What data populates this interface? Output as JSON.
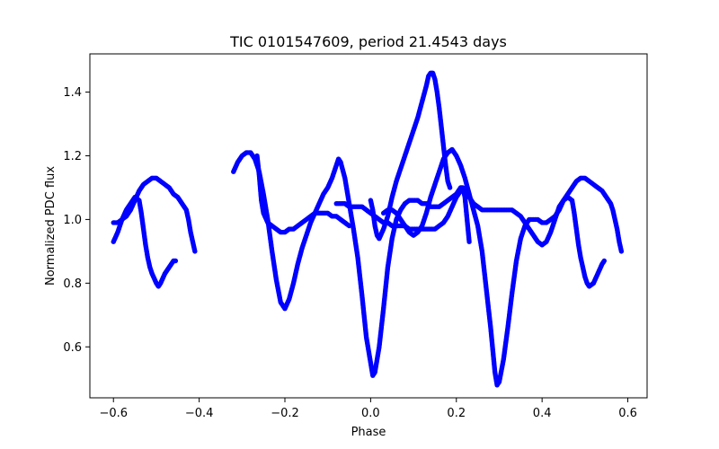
{
  "chart_data": {
    "type": "scatter",
    "title": "TIC 0101547609, period 21.4543 days",
    "xlabel": "Phase",
    "ylabel": "Normalized PDC flux",
    "xlim": [
      -0.655,
      0.645
    ],
    "ylim": [
      0.44,
      1.52
    ],
    "xticks": [
      -0.6,
      -0.4,
      -0.2,
      0.0,
      0.2,
      0.4,
      0.6
    ],
    "xtick_labels": [
      "−0.6",
      "−0.4",
      "−0.2",
      "0.0",
      "0.2",
      "0.4",
      "0.6"
    ],
    "yticks": [
      0.6,
      0.8,
      1.0,
      1.2,
      1.4
    ],
    "ytick_labels": [
      "0.6",
      "0.8",
      "1.0",
      "1.2",
      "1.4"
    ],
    "grid": false,
    "color": "#0000ff",
    "series": [
      {
        "name": "segment-1",
        "points": [
          [
            -0.6,
            0.93
          ],
          [
            -0.59,
            0.96
          ],
          [
            -0.58,
            1.0
          ],
          [
            -0.57,
            1.03
          ],
          [
            -0.56,
            1.05
          ],
          [
            -0.55,
            1.07
          ],
          [
            -0.54,
            1.06
          ],
          [
            -0.535,
            1.02
          ],
          [
            -0.53,
            0.97
          ],
          [
            -0.525,
            0.92
          ],
          [
            -0.52,
            0.88
          ],
          [
            -0.515,
            0.85
          ],
          [
            -0.51,
            0.83
          ],
          [
            -0.5,
            0.8
          ],
          [
            -0.495,
            0.79
          ],
          [
            -0.49,
            0.8
          ],
          [
            -0.48,
            0.83
          ],
          [
            -0.47,
            0.85
          ],
          [
            -0.46,
            0.87
          ],
          [
            -0.455,
            0.87
          ]
        ]
      },
      {
        "name": "segment-2",
        "points": [
          [
            -0.6,
            0.99
          ],
          [
            -0.59,
            0.99
          ],
          [
            -0.58,
            1.0
          ],
          [
            -0.57,
            1.01
          ],
          [
            -0.56,
            1.03
          ],
          [
            -0.55,
            1.06
          ],
          [
            -0.54,
            1.09
          ],
          [
            -0.53,
            1.11
          ],
          [
            -0.52,
            1.12
          ],
          [
            -0.51,
            1.13
          ],
          [
            -0.5,
            1.13
          ],
          [
            -0.49,
            1.12
          ],
          [
            -0.48,
            1.11
          ],
          [
            -0.47,
            1.1
          ],
          [
            -0.46,
            1.08
          ],
          [
            -0.45,
            1.07
          ],
          [
            -0.44,
            1.05
          ],
          [
            -0.43,
            1.03
          ],
          [
            -0.425,
            1.0
          ],
          [
            -0.42,
            0.96
          ],
          [
            -0.415,
            0.93
          ],
          [
            -0.41,
            0.9
          ]
        ]
      },
      {
        "name": "segment-3",
        "points": [
          [
            -0.32,
            1.15
          ],
          [
            -0.31,
            1.18
          ],
          [
            -0.3,
            1.2
          ],
          [
            -0.29,
            1.21
          ],
          [
            -0.28,
            1.21
          ],
          [
            -0.27,
            1.19
          ],
          [
            -0.26,
            1.15
          ],
          [
            -0.25,
            1.08
          ],
          [
            -0.24,
            1.0
          ],
          [
            -0.23,
            0.9
          ],
          [
            -0.22,
            0.81
          ],
          [
            -0.21,
            0.74
          ],
          [
            -0.2,
            0.72
          ],
          [
            -0.19,
            0.75
          ],
          [
            -0.18,
            0.8
          ],
          [
            -0.17,
            0.86
          ],
          [
            -0.16,
            0.91
          ],
          [
            -0.15,
            0.95
          ],
          [
            -0.14,
            0.99
          ],
          [
            -0.13,
            1.02
          ],
          [
            -0.12,
            1.05
          ],
          [
            -0.11,
            1.08
          ],
          [
            -0.1,
            1.1
          ],
          [
            -0.09,
            1.13
          ],
          [
            -0.08,
            1.17
          ],
          [
            -0.075,
            1.19
          ],
          [
            -0.07,
            1.18
          ],
          [
            -0.06,
            1.13
          ],
          [
            -0.05,
            1.05
          ],
          [
            -0.04,
            0.97
          ],
          [
            -0.03,
            0.88
          ],
          [
            -0.02,
            0.76
          ],
          [
            -0.01,
            0.63
          ],
          [
            0.0,
            0.55
          ],
          [
            0.005,
            0.51
          ],
          [
            0.01,
            0.52
          ],
          [
            0.02,
            0.6
          ],
          [
            0.03,
            0.72
          ],
          [
            0.04,
            0.85
          ],
          [
            0.05,
            0.94
          ],
          [
            0.06,
            1.0
          ],
          [
            0.07,
            1.03
          ],
          [
            0.08,
            1.05
          ],
          [
            0.09,
            1.06
          ],
          [
            0.1,
            1.06
          ],
          [
            0.11,
            1.06
          ],
          [
            0.12,
            1.05
          ],
          [
            0.13,
            1.05
          ],
          [
            0.14,
            1.04
          ],
          [
            0.15,
            1.04
          ],
          [
            0.16,
            1.04
          ],
          [
            0.17,
            1.05
          ],
          [
            0.18,
            1.06
          ],
          [
            0.19,
            1.07
          ],
          [
            0.2,
            1.08
          ],
          [
            0.21,
            1.1
          ],
          [
            0.215,
            1.1
          ],
          [
            0.22,
            1.07
          ],
          [
            0.225,
            1.0
          ],
          [
            0.23,
            0.93
          ]
        ]
      },
      {
        "name": "segment-4",
        "points": [
          [
            -0.265,
            1.2
          ],
          [
            -0.26,
            1.14
          ],
          [
            -0.255,
            1.06
          ],
          [
            -0.25,
            1.02
          ],
          [
            -0.24,
            0.99
          ],
          [
            -0.23,
            0.98
          ],
          [
            -0.22,
            0.97
          ],
          [
            -0.21,
            0.96
          ],
          [
            -0.2,
            0.96
          ],
          [
            -0.19,
            0.97
          ],
          [
            -0.18,
            0.97
          ],
          [
            -0.17,
            0.98
          ],
          [
            -0.16,
            0.99
          ],
          [
            -0.15,
            1.0
          ],
          [
            -0.14,
            1.01
          ],
          [
            -0.13,
            1.02
          ],
          [
            -0.12,
            1.02
          ],
          [
            -0.11,
            1.02
          ],
          [
            -0.1,
            1.02
          ],
          [
            -0.09,
            1.01
          ],
          [
            -0.08,
            1.01
          ],
          [
            -0.07,
            1.0
          ],
          [
            -0.06,
            0.99
          ],
          [
            -0.05,
            0.98
          ]
        ]
      },
      {
        "name": "segment-5",
        "points": [
          [
            -0.08,
            1.05
          ],
          [
            -0.07,
            1.05
          ],
          [
            -0.06,
            1.05
          ],
          [
            -0.05,
            1.04
          ],
          [
            -0.04,
            1.04
          ],
          [
            -0.03,
            1.04
          ],
          [
            -0.02,
            1.04
          ],
          [
            -0.01,
            1.03
          ],
          [
            0.0,
            1.02
          ],
          [
            0.01,
            1.01
          ],
          [
            0.02,
            1.0
          ],
          [
            0.03,
            0.99
          ],
          [
            0.04,
            0.99
          ],
          [
            0.05,
            0.98
          ],
          [
            0.06,
            0.98
          ],
          [
            0.07,
            0.98
          ],
          [
            0.08,
            0.98
          ],
          [
            0.09,
            0.97
          ],
          [
            0.1,
            0.97
          ],
          [
            0.11,
            0.97
          ],
          [
            0.12,
            0.97
          ],
          [
            0.13,
            0.97
          ],
          [
            0.14,
            0.97
          ],
          [
            0.15,
            0.97
          ],
          [
            0.16,
            0.98
          ],
          [
            0.17,
            0.99
          ],
          [
            0.18,
            1.01
          ],
          [
            0.19,
            1.04
          ],
          [
            0.2,
            1.07
          ],
          [
            0.21,
            1.09
          ],
          [
            0.22,
            1.09
          ],
          [
            0.23,
            1.07
          ],
          [
            0.24,
            1.05
          ],
          [
            0.25,
            1.04
          ],
          [
            0.26,
            1.03
          ],
          [
            0.27,
            1.03
          ],
          [
            0.28,
            1.03
          ],
          [
            0.29,
            1.03
          ],
          [
            0.3,
            1.03
          ],
          [
            0.31,
            1.03
          ],
          [
            0.32,
            1.03
          ],
          [
            0.33,
            1.03
          ],
          [
            0.34,
            1.02
          ],
          [
            0.35,
            1.01
          ],
          [
            0.36,
            0.99
          ],
          [
            0.37,
            0.97
          ],
          [
            0.38,
            0.95
          ],
          [
            0.39,
            0.93
          ],
          [
            0.4,
            0.92
          ],
          [
            0.41,
            0.93
          ],
          [
            0.42,
            0.96
          ],
          [
            0.43,
            1.0
          ],
          [
            0.44,
            1.04
          ],
          [
            0.45,
            1.06
          ],
          [
            0.46,
            1.07
          ],
          [
            0.47,
            1.06
          ],
          [
            0.475,
            1.02
          ],
          [
            0.48,
            0.97
          ],
          [
            0.485,
            0.92
          ],
          [
            0.49,
            0.88
          ],
          [
            0.495,
            0.85
          ],
          [
            0.5,
            0.82
          ],
          [
            0.505,
            0.8
          ],
          [
            0.51,
            0.79
          ],
          [
            0.52,
            0.8
          ],
          [
            0.53,
            0.83
          ],
          [
            0.54,
            0.86
          ],
          [
            0.545,
            0.87
          ]
        ]
      },
      {
        "name": "segment-6",
        "points": [
          [
            0.0,
            1.06
          ],
          [
            0.005,
            1.03
          ],
          [
            0.01,
            0.98
          ],
          [
            0.015,
            0.95
          ],
          [
            0.02,
            0.94
          ],
          [
            0.03,
            0.97
          ],
          [
            0.04,
            1.01
          ],
          [
            0.05,
            1.07
          ],
          [
            0.06,
            1.12
          ],
          [
            0.07,
            1.16
          ],
          [
            0.08,
            1.2
          ],
          [
            0.09,
            1.24
          ],
          [
            0.1,
            1.28
          ],
          [
            0.11,
            1.32
          ],
          [
            0.12,
            1.37
          ],
          [
            0.13,
            1.42
          ],
          [
            0.135,
            1.45
          ],
          [
            0.14,
            1.46
          ],
          [
            0.145,
            1.46
          ],
          [
            0.15,
            1.44
          ],
          [
            0.155,
            1.4
          ],
          [
            0.16,
            1.35
          ],
          [
            0.165,
            1.29
          ],
          [
            0.17,
            1.23
          ],
          [
            0.175,
            1.17
          ],
          [
            0.18,
            1.12
          ],
          [
            0.185,
            1.1
          ]
        ]
      },
      {
        "name": "segment-7",
        "points": [
          [
            0.03,
            1.02
          ],
          [
            0.04,
            1.03
          ],
          [
            0.05,
            1.03
          ],
          [
            0.06,
            1.02
          ],
          [
            0.07,
            1.0
          ],
          [
            0.08,
            0.98
          ],
          [
            0.09,
            0.96
          ],
          [
            0.1,
            0.95
          ],
          [
            0.11,
            0.96
          ],
          [
            0.12,
            0.98
          ],
          [
            0.13,
            1.02
          ],
          [
            0.14,
            1.07
          ],
          [
            0.15,
            1.11
          ],
          [
            0.16,
            1.15
          ],
          [
            0.17,
            1.19
          ],
          [
            0.18,
            1.21
          ],
          [
            0.19,
            1.22
          ],
          [
            0.2,
            1.2
          ],
          [
            0.21,
            1.17
          ],
          [
            0.22,
            1.13
          ],
          [
            0.23,
            1.08
          ],
          [
            0.24,
            1.03
          ],
          [
            0.25,
            0.98
          ],
          [
            0.26,
            0.9
          ],
          [
            0.27,
            0.78
          ],
          [
            0.28,
            0.66
          ],
          [
            0.285,
            0.59
          ],
          [
            0.29,
            0.52
          ],
          [
            0.295,
            0.48
          ],
          [
            0.3,
            0.49
          ],
          [
            0.31,
            0.56
          ],
          [
            0.32,
            0.66
          ],
          [
            0.33,
            0.77
          ],
          [
            0.34,
            0.87
          ],
          [
            0.35,
            0.94
          ],
          [
            0.36,
            0.98
          ],
          [
            0.37,
            1.0
          ],
          [
            0.38,
            1.0
          ],
          [
            0.39,
            1.0
          ],
          [
            0.4,
            0.99
          ],
          [
            0.41,
            0.99
          ],
          [
            0.42,
            1.0
          ],
          [
            0.43,
            1.01
          ],
          [
            0.44,
            1.03
          ],
          [
            0.45,
            1.06
          ],
          [
            0.46,
            1.08
          ],
          [
            0.47,
            1.1
          ],
          [
            0.48,
            1.12
          ],
          [
            0.49,
            1.13
          ],
          [
            0.5,
            1.13
          ],
          [
            0.51,
            1.12
          ],
          [
            0.52,
            1.11
          ],
          [
            0.53,
            1.1
          ],
          [
            0.54,
            1.09
          ],
          [
            0.55,
            1.07
          ],
          [
            0.56,
            1.05
          ],
          [
            0.565,
            1.03
          ],
          [
            0.57,
            1.0
          ],
          [
            0.575,
            0.97
          ],
          [
            0.58,
            0.93
          ],
          [
            0.585,
            0.9
          ]
        ]
      }
    ]
  }
}
